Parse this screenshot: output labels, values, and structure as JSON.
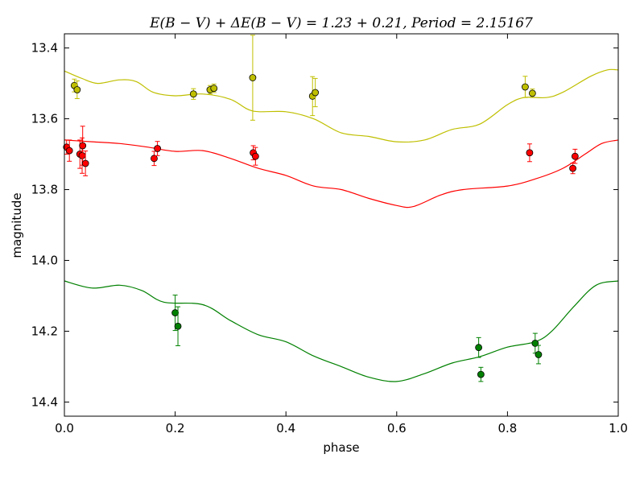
{
  "chart_data": {
    "type": "scatter",
    "title": "E(B − V) + ΔE(B − V) = 1.23 + 0.21, Period = 2.15167",
    "xlabel": "phase",
    "ylabel": "magnitude",
    "xlim": [
      0.0,
      1.0
    ],
    "ylim": [
      14.44,
      13.36
    ],
    "y_inverted": true,
    "grid": false,
    "xticks": [
      {
        "v": 0.0,
        "label": "0.0"
      },
      {
        "v": 0.2,
        "label": "0.2"
      },
      {
        "v": 0.4,
        "label": "0.4"
      },
      {
        "v": 0.6,
        "label": "0.6"
      },
      {
        "v": 0.8,
        "label": "0.8"
      },
      {
        "v": 1.0,
        "label": "1.0"
      }
    ],
    "yticks": [
      {
        "v": 13.4,
        "label": "13.4"
      },
      {
        "v": 13.6,
        "label": "13.6"
      },
      {
        "v": 13.8,
        "label": "13.8"
      },
      {
        "v": 14.0,
        "label": "14.0"
      },
      {
        "v": 14.2,
        "label": "14.2"
      },
      {
        "v": 14.4,
        "label": "14.4"
      }
    ],
    "series": [
      {
        "color": "#bfbf00",
        "points": [
          {
            "x": 0.018,
            "y": 13.506,
            "err": 0.018
          },
          {
            "x": 0.023,
            "y": 13.518,
            "err": 0.025
          },
          {
            "x": 0.233,
            "y": 13.53,
            "err": 0.015
          },
          {
            "x": 0.263,
            "y": 13.518,
            "err": 0.012
          },
          {
            "x": 0.27,
            "y": 13.514,
            "err": 0.012
          },
          {
            "x": 0.34,
            "y": 13.484,
            "err": 0.12
          },
          {
            "x": 0.448,
            "y": 13.536,
            "err": 0.055
          },
          {
            "x": 0.453,
            "y": 13.526,
            "err": 0.04
          },
          {
            "x": 0.832,
            "y": 13.51,
            "err": 0.03
          },
          {
            "x": 0.845,
            "y": 13.528,
            "err": 0.012
          }
        ],
        "curve": [
          [
            0.0,
            13.465
          ],
          [
            0.03,
            13.485
          ],
          [
            0.06,
            13.5
          ],
          [
            0.1,
            13.49
          ],
          [
            0.13,
            13.495
          ],
          [
            0.16,
            13.525
          ],
          [
            0.2,
            13.535
          ],
          [
            0.25,
            13.53
          ],
          [
            0.3,
            13.545
          ],
          [
            0.34,
            13.578
          ],
          [
            0.4,
            13.58
          ],
          [
            0.45,
            13.6
          ],
          [
            0.5,
            13.64
          ],
          [
            0.55,
            13.65
          ],
          [
            0.6,
            13.665
          ],
          [
            0.65,
            13.66
          ],
          [
            0.7,
            13.63
          ],
          [
            0.75,
            13.615
          ],
          [
            0.8,
            13.56
          ],
          [
            0.83,
            13.54
          ],
          [
            0.87,
            13.54
          ],
          [
            0.9,
            13.525
          ],
          [
            0.95,
            13.48
          ],
          [
            0.98,
            13.462
          ],
          [
            1.0,
            13.462
          ]
        ]
      },
      {
        "color": "#ff0000",
        "points": [
          {
            "x": 0.004,
            "y": 13.68,
            "err": 0.02
          },
          {
            "x": 0.009,
            "y": 13.69,
            "err": 0.03
          },
          {
            "x": 0.028,
            "y": 13.7,
            "err": 0.04
          },
          {
            "x": 0.032,
            "y": 13.704,
            "err": 0.05
          },
          {
            "x": 0.033,
            "y": 13.676,
            "err": 0.055
          },
          {
            "x": 0.038,
            "y": 13.726,
            "err": 0.035
          },
          {
            "x": 0.162,
            "y": 13.712,
            "err": 0.02
          },
          {
            "x": 0.168,
            "y": 13.684,
            "err": 0.02
          },
          {
            "x": 0.341,
            "y": 13.696,
            "err": 0.02
          },
          {
            "x": 0.345,
            "y": 13.706,
            "err": 0.025
          },
          {
            "x": 0.84,
            "y": 13.696,
            "err": 0.025
          },
          {
            "x": 0.918,
            "y": 13.74,
            "err": 0.015
          },
          {
            "x": 0.922,
            "y": 13.706,
            "err": 0.02
          }
        ],
        "curve": [
          [
            0.0,
            13.66
          ],
          [
            0.05,
            13.665
          ],
          [
            0.1,
            13.67
          ],
          [
            0.15,
            13.68
          ],
          [
            0.2,
            13.692
          ],
          [
            0.25,
            13.69
          ],
          [
            0.3,
            13.712
          ],
          [
            0.35,
            13.74
          ],
          [
            0.4,
            13.76
          ],
          [
            0.45,
            13.79
          ],
          [
            0.5,
            13.8
          ],
          [
            0.55,
            13.825
          ],
          [
            0.6,
            13.845
          ],
          [
            0.63,
            13.848
          ],
          [
            0.68,
            13.815
          ],
          [
            0.72,
            13.8
          ],
          [
            0.8,
            13.79
          ],
          [
            0.85,
            13.77
          ],
          [
            0.9,
            13.74
          ],
          [
            0.94,
            13.7
          ],
          [
            0.97,
            13.67
          ],
          [
            1.0,
            13.66
          ]
        ]
      },
      {
        "color": "#008000",
        "points": [
          {
            "x": 0.2,
            "y": 14.148,
            "err": 0.05
          },
          {
            "x": 0.205,
            "y": 14.186,
            "err": 0.055
          },
          {
            "x": 0.748,
            "y": 14.246,
            "err": 0.028
          },
          {
            "x": 0.752,
            "y": 14.322,
            "err": 0.02
          },
          {
            "x": 0.85,
            "y": 14.234,
            "err": 0.028
          },
          {
            "x": 0.856,
            "y": 14.266,
            "err": 0.026
          }
        ],
        "curve": [
          [
            0.0,
            14.058
          ],
          [
            0.05,
            14.078
          ],
          [
            0.1,
            14.07
          ],
          [
            0.14,
            14.085
          ],
          [
            0.18,
            14.118
          ],
          [
            0.25,
            14.125
          ],
          [
            0.3,
            14.17
          ],
          [
            0.35,
            14.21
          ],
          [
            0.4,
            14.23
          ],
          [
            0.45,
            14.27
          ],
          [
            0.5,
            14.3
          ],
          [
            0.55,
            14.33
          ],
          [
            0.6,
            14.342
          ],
          [
            0.65,
            14.32
          ],
          [
            0.7,
            14.29
          ],
          [
            0.75,
            14.272
          ],
          [
            0.8,
            14.245
          ],
          [
            0.85,
            14.23
          ],
          [
            0.88,
            14.2
          ],
          [
            0.92,
            14.13
          ],
          [
            0.96,
            14.07
          ],
          [
            1.0,
            14.058
          ]
        ]
      }
    ]
  }
}
